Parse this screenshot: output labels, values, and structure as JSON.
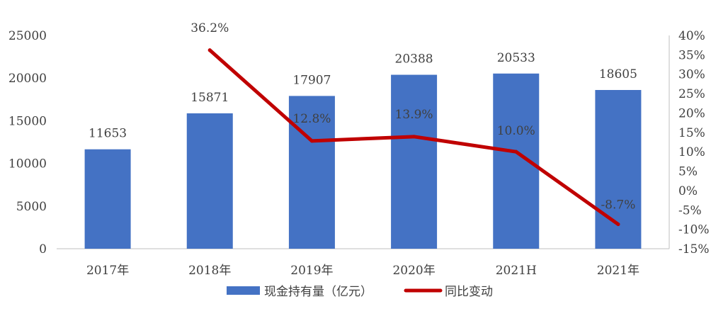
{
  "chart_data": {
    "type": "bar",
    "categories": [
      "2017年",
      "2018年",
      "2019年",
      "2020年",
      "2021H",
      "2021年"
    ],
    "series": [
      {
        "name": "现金持有量（亿元）",
        "type": "bar",
        "axis": "left",
        "values": [
          11653,
          15871,
          17907,
          20388,
          20533,
          18605
        ],
        "labels": [
          "11653",
          "15871",
          "17907",
          "20388",
          "20533",
          "18605"
        ],
        "color": "#4472C4"
      },
      {
        "name": "同比变动",
        "type": "line",
        "axis": "right",
        "points": [
          {
            "category": "2018年",
            "value": 36.2,
            "label": "36.2%"
          },
          {
            "category": "2019年",
            "value": 12.8,
            "label": "12.8%"
          },
          {
            "category": "2020年",
            "value": 13.9,
            "label": "13.9%"
          },
          {
            "category": "2021H",
            "value": 10.0,
            "label": "10.0%"
          },
          {
            "category": "2021年",
            "value": -8.7,
            "label": "-8.7%"
          }
        ],
        "color": "#C00000"
      }
    ],
    "y_left": {
      "ylim": [
        0,
        25000
      ],
      "ticks": [
        "0",
        "5000",
        "10000",
        "15000",
        "20000",
        "25000"
      ]
    },
    "y_right": {
      "ylim": [
        -15,
        40
      ],
      "ticks": [
        "-15%",
        "-10%",
        "-5%",
        "0%",
        "5%",
        "10%",
        "15%",
        "20%",
        "25%",
        "30%",
        "35%",
        "40%"
      ]
    },
    "grid": false,
    "legend": "bottom-center"
  }
}
